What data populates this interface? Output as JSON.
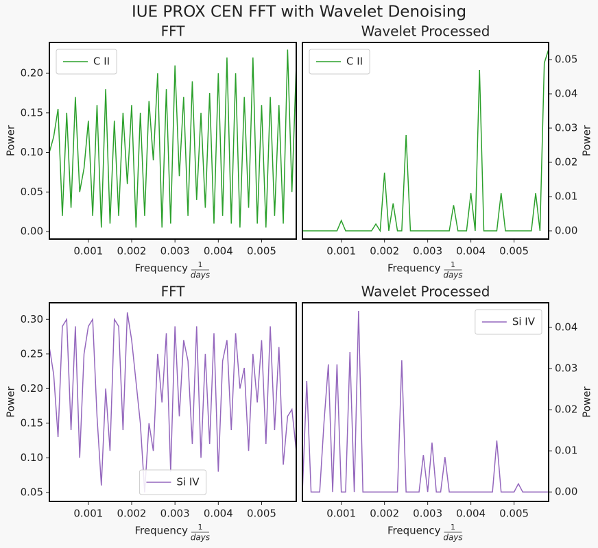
{
  "title": "IUE PROX CEN FFT with Wavelet Denoising",
  "chart_data": [
    {
      "type": "line",
      "title": "FFT",
      "xlabel": "Frequency",
      "xlabel_fraction": [
        "1",
        "days"
      ],
      "ylabel": "Power",
      "yaxis_side": "left",
      "legend": "upper left",
      "x": [
        0.0001,
        0.0002,
        0.0003,
        0.0004,
        0.0005,
        0.0006,
        0.0007,
        0.0008,
        0.0009,
        0.001,
        0.0011,
        0.0012,
        0.0013,
        0.0014,
        0.0015,
        0.0016,
        0.0017,
        0.0018,
        0.0019,
        0.002,
        0.0021,
        0.0022,
        0.0023,
        0.0024,
        0.0025,
        0.0026,
        0.0027,
        0.0028,
        0.0029,
        0.003,
        0.0031,
        0.0032,
        0.0033,
        0.0034,
        0.0035,
        0.0036,
        0.0037,
        0.0038,
        0.0039,
        0.004,
        0.0041,
        0.0042,
        0.0043,
        0.0044,
        0.0045,
        0.0046,
        0.0047,
        0.0048,
        0.0049,
        0.005,
        0.0051,
        0.0052,
        0.0053,
        0.0054,
        0.0055,
        0.0056,
        0.0057,
        0.0058
      ],
      "series": [
        {
          "name": "C II",
          "color": "#2ca02c",
          "values": [
            0.1,
            0.12,
            0.155,
            0.02,
            0.15,
            0.03,
            0.17,
            0.05,
            0.08,
            0.14,
            0.02,
            0.16,
            0.005,
            0.18,
            0.01,
            0.14,
            0.02,
            0.15,
            0.06,
            0.16,
            0.005,
            0.15,
            0.02,
            0.165,
            0.09,
            0.2,
            0.005,
            0.18,
            0.01,
            0.21,
            0.07,
            0.17,
            0.02,
            0.19,
            0.04,
            0.15,
            0.03,
            0.175,
            0.01,
            0.2,
            0.02,
            0.22,
            0.01,
            0.2,
            0.005,
            0.17,
            0.03,
            0.22,
            0.01,
            0.16,
            0.005,
            0.17,
            0.02,
            0.16,
            0.01,
            0.23,
            0.05,
            0.21
          ]
        }
      ],
      "xlim": [
        0.0001,
        0.0058
      ],
      "xticks": [
        0.001,
        0.002,
        0.003,
        0.004,
        0.005
      ],
      "ylim": [
        -0.0095,
        0.239
      ],
      "yticks": [
        {
          "value": 0,
          "label": "0.00"
        },
        0.05,
        {
          "value": 0.1,
          "label": "0.10"
        },
        0.15,
        {
          "value": 0.2,
          "label": "0.20"
        }
      ]
    },
    {
      "type": "line",
      "title": "Wavelet Processed",
      "xlabel": "Frequency",
      "xlabel_fraction": [
        "1",
        "days"
      ],
      "ylabel": "Power",
      "yaxis_side": "right",
      "legend": "upper left",
      "x": [
        0.0001,
        0.0002,
        0.0003,
        0.0004,
        0.0005,
        0.0006,
        0.0007,
        0.0008,
        0.0009,
        0.001,
        0.0011,
        0.0012,
        0.0013,
        0.0014,
        0.0015,
        0.0016,
        0.0017,
        0.0018,
        0.0019,
        0.002,
        0.0021,
        0.0022,
        0.0023,
        0.0024,
        0.0025,
        0.0026,
        0.0027,
        0.0028,
        0.0029,
        0.003,
        0.0031,
        0.0032,
        0.0033,
        0.0034,
        0.0035,
        0.0036,
        0.0037,
        0.0038,
        0.0039,
        0.004,
        0.0041,
        0.0042,
        0.0043,
        0.0044,
        0.0045,
        0.0046,
        0.0047,
        0.0048,
        0.0049,
        0.005,
        0.0051,
        0.0052,
        0.0053,
        0.0054,
        0.0055,
        0.0056,
        0.0057,
        0.0058
      ],
      "series": [
        {
          "name": "C II",
          "color": "#2ca02c",
          "values": [
            0,
            0,
            0,
            0,
            0,
            0,
            0,
            0,
            0,
            0.003,
            0,
            0,
            0,
            0,
            0,
            0,
            0,
            0.002,
            0,
            0.017,
            0,
            0.008,
            0,
            0,
            0.028,
            0,
            0,
            0,
            0,
            0,
            0,
            0,
            0,
            0,
            0,
            0.0075,
            0,
            0,
            0,
            0.011,
            0,
            0.047,
            0,
            0,
            0,
            0,
            0.011,
            0,
            0,
            0,
            0,
            0,
            0,
            0,
            0.011,
            0,
            0.049,
            0.053
          ]
        }
      ],
      "xlim": [
        0.0001,
        0.0058
      ],
      "xticks": [
        0.001,
        0.002,
        0.003,
        0.004,
        0.005
      ],
      "ylim": [
        -0.0024,
        0.055
      ],
      "yticks": [
        {
          "value": 0,
          "label": "0.00"
        },
        0.01,
        0.02,
        0.03,
        0.04,
        0.05
      ]
    },
    {
      "type": "line",
      "title": "FFT",
      "xlabel": "Frequency",
      "xlabel_fraction": [
        "1",
        "days"
      ],
      "ylabel": "Power",
      "yaxis_side": "left",
      "legend": "lower center",
      "x": [
        0.0001,
        0.0002,
        0.0003,
        0.0004,
        0.0005,
        0.0006,
        0.0007,
        0.0008,
        0.0009,
        0.001,
        0.0011,
        0.0012,
        0.0013,
        0.0014,
        0.0015,
        0.0016,
        0.0017,
        0.0018,
        0.0019,
        0.002,
        0.0021,
        0.0022,
        0.0023,
        0.0024,
        0.0025,
        0.0026,
        0.0027,
        0.0028,
        0.0029,
        0.003,
        0.0031,
        0.0032,
        0.0033,
        0.0034,
        0.0035,
        0.0036,
        0.0037,
        0.0038,
        0.0039,
        0.004,
        0.0041,
        0.0042,
        0.0043,
        0.0044,
        0.0045,
        0.0046,
        0.0047,
        0.0048,
        0.0049,
        0.005,
        0.0051,
        0.0052,
        0.0053,
        0.0054,
        0.0055,
        0.0056,
        0.0057,
        0.0058
      ],
      "series": [
        {
          "name": "Si IV",
          "color": "#9467bd",
          "values": [
            0.26,
            0.22,
            0.13,
            0.29,
            0.3,
            0.14,
            0.29,
            0.1,
            0.25,
            0.29,
            0.3,
            0.16,
            0.06,
            0.2,
            0.11,
            0.3,
            0.29,
            0.14,
            0.31,
            0.27,
            0.21,
            0.15,
            0.05,
            0.15,
            0.11,
            0.25,
            0.18,
            0.28,
            0.08,
            0.29,
            0.16,
            0.27,
            0.24,
            0.12,
            0.29,
            0.1,
            0.25,
            0.12,
            0.28,
            0.08,
            0.24,
            0.27,
            0.14,
            0.28,
            0.2,
            0.23,
            0.11,
            0.25,
            0.18,
            0.27,
            0.12,
            0.29,
            0.14,
            0.26,
            0.09,
            0.16,
            0.17,
            0.11
          ]
        }
      ],
      "xlim": [
        0.0001,
        0.0058
      ],
      "xticks": [
        0.001,
        0.002,
        0.003,
        0.004,
        0.005
      ],
      "ylim": [
        0.037,
        0.324
      ],
      "yticks": [
        0.05,
        {
          "value": 0.1,
          "label": "0.10"
        },
        0.15,
        {
          "value": 0.2,
          "label": "0.20"
        },
        0.25,
        {
          "value": 0.3,
          "label": "0.30"
        }
      ]
    },
    {
      "type": "line",
      "title": "Wavelet Processed",
      "xlabel": "Frequency",
      "xlabel_fraction": [
        "1",
        "days"
      ],
      "ylabel": "Power",
      "yaxis_side": "right",
      "legend": "upper right",
      "x": [
        0.0001,
        0.0002,
        0.0003,
        0.0004,
        0.0005,
        0.0006,
        0.0007,
        0.0008,
        0.0009,
        0.001,
        0.0011,
        0.0012,
        0.0013,
        0.0014,
        0.0015,
        0.0016,
        0.0017,
        0.0018,
        0.0019,
        0.002,
        0.0021,
        0.0022,
        0.0023,
        0.0024,
        0.0025,
        0.0026,
        0.0027,
        0.0028,
        0.0029,
        0.003,
        0.0031,
        0.0032,
        0.0033,
        0.0034,
        0.0035,
        0.0036,
        0.0037,
        0.0038,
        0.0039,
        0.004,
        0.0041,
        0.0042,
        0.0043,
        0.0044,
        0.0045,
        0.0046,
        0.0047,
        0.0048,
        0.0049,
        0.005,
        0.0051,
        0.0052,
        0.0053,
        0.0054,
        0.0055,
        0.0056,
        0.0057,
        0.0058
      ],
      "series": [
        {
          "name": "Si IV",
          "color": "#9467bd",
          "values": [
            0,
            0.027,
            0,
            0,
            0,
            0.017,
            0.031,
            0,
            0.031,
            0,
            0,
            0.034,
            0,
            0.044,
            0,
            0,
            0,
            0,
            0,
            0,
            0,
            0,
            0,
            0.032,
            0,
            0,
            0,
            0,
            0.009,
            0,
            0.012,
            0,
            0,
            0.0085,
            0,
            0,
            0,
            0,
            0,
            0,
            0,
            0,
            0,
            0,
            0,
            0.0125,
            0,
            0,
            0,
            0,
            0.002,
            0,
            0,
            0,
            0,
            0,
            0,
            0
          ]
        }
      ],
      "xlim": [
        0.0001,
        0.0058
      ],
      "xticks": [
        0.001,
        0.002,
        0.003,
        0.004,
        0.005
      ],
      "ylim": [
        -0.0023,
        0.046
      ],
      "yticks": [
        {
          "value": 0,
          "label": "0.00"
        },
        0.01,
        0.02,
        0.03,
        0.04
      ]
    }
  ]
}
